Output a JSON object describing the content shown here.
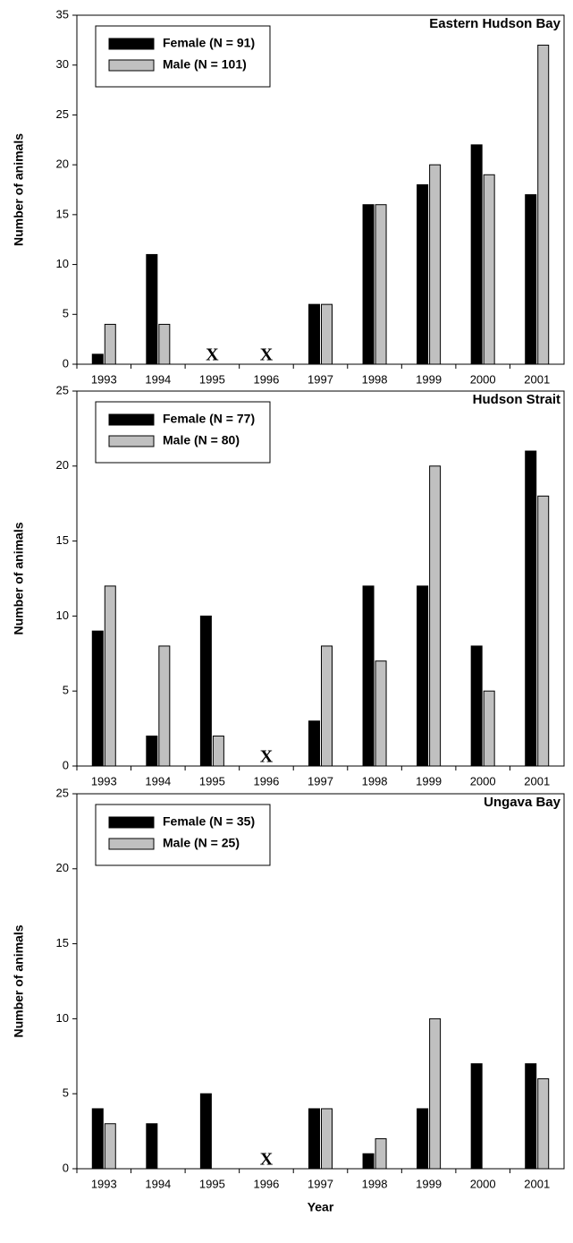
{
  "chart_data": [
    {
      "type": "bar",
      "title": "Eastern Hudson Bay",
      "y_label": "Number of animals",
      "categories": [
        "1993",
        "1994",
        "1995",
        "1996",
        "1997",
        "1998",
        "1999",
        "2000",
        "2001"
      ],
      "series": [
        {
          "name": "Female (N = 91)",
          "color": "#000000",
          "values": [
            1,
            11,
            null,
            null,
            6,
            16,
            18,
            22,
            17
          ]
        },
        {
          "name": "Male (N = 101)",
          "color": "#c0c0c0",
          "values": [
            4,
            4,
            null,
            null,
            6,
            16,
            20,
            19,
            32
          ]
        }
      ],
      "annotations": [
        {
          "text": "X",
          "x": "1995"
        },
        {
          "text": "X",
          "x": "1996"
        }
      ],
      "ylim": [
        0,
        35
      ],
      "yticks": [
        0,
        5,
        10,
        15,
        20,
        25,
        30,
        35
      ],
      "legend": "upper-left"
    },
    {
      "type": "bar",
      "title": "Hudson Strait",
      "y_label": "Number of animals",
      "categories": [
        "1993",
        "1994",
        "1995",
        "1996",
        "1997",
        "1998",
        "1999",
        "2000",
        "2001"
      ],
      "series": [
        {
          "name": "Female (N = 77)",
          "color": "#000000",
          "values": [
            9,
            2,
            10,
            null,
            3,
            12,
            12,
            8,
            21
          ]
        },
        {
          "name": "Male (N = 80)",
          "color": "#c0c0c0",
          "values": [
            12,
            8,
            2,
            null,
            8,
            7,
            20,
            5,
            18
          ]
        }
      ],
      "annotations": [
        {
          "text": "X",
          "x": "1996"
        }
      ],
      "ylim": [
        0,
        25
      ],
      "yticks": [
        0,
        5,
        10,
        15,
        20,
        25
      ],
      "legend": "upper-left"
    },
    {
      "type": "bar",
      "title": "Ungava Bay",
      "y_label": "Number of animals",
      "x_label": "Year",
      "categories": [
        "1993",
        "1994",
        "1995",
        "1996",
        "1997",
        "1998",
        "1999",
        "2000",
        "2001"
      ],
      "series": [
        {
          "name": "Female (N = 35)",
          "color": "#000000",
          "values": [
            4,
            3,
            5,
            null,
            4,
            1,
            4,
            7,
            7
          ]
        },
        {
          "name": "Male (N = 25)",
          "color": "#c0c0c0",
          "values": [
            3,
            0,
            0,
            null,
            4,
            2,
            10,
            0,
            6
          ]
        }
      ],
      "annotations": [
        {
          "text": "X",
          "x": "1996"
        }
      ],
      "ylim": [
        0,
        25
      ],
      "yticks": [
        0,
        5,
        10,
        15,
        20,
        25
      ],
      "legend": "upper-left"
    }
  ]
}
